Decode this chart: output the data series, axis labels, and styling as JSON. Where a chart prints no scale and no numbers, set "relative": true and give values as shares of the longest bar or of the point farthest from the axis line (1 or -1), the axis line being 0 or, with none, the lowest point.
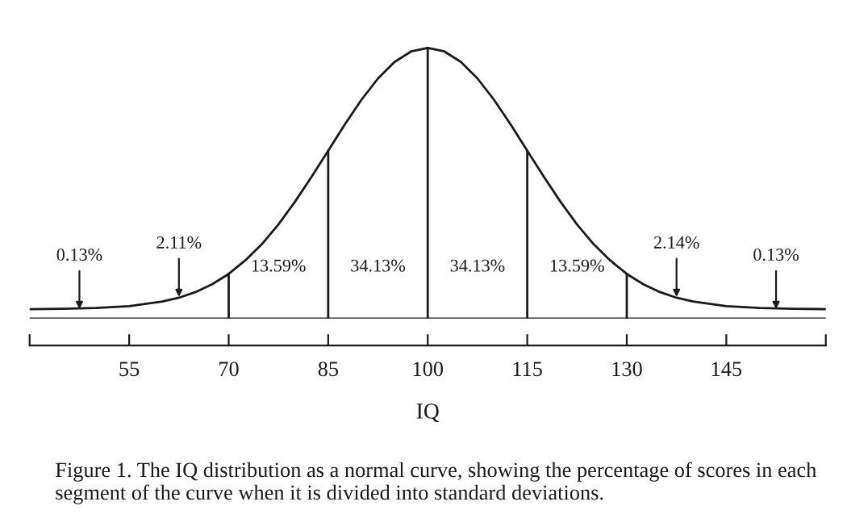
{
  "chart_data": {
    "type": "line",
    "relative": true,
    "xlabel": "IQ",
    "x": [
      40,
      45,
      50,
      55,
      60,
      62.5,
      65,
      67.5,
      70,
      72.5,
      75,
      77.5,
      80,
      82.5,
      85,
      87.5,
      90,
      92.5,
      95,
      97.5,
      100,
      102.5,
      105,
      107.5,
      110,
      112.5,
      115,
      117.5,
      120,
      122.5,
      125,
      127.5,
      130,
      132.5,
      135,
      137.5,
      140,
      145,
      150,
      155,
      160
    ],
    "series": [
      {
        "color": "#1a1a1a",
        "values": [
          0.035,
          0.036,
          0.039,
          0.046,
          0.063,
          0.077,
          0.098,
          0.127,
          0.165,
          0.215,
          0.275,
          0.348,
          0.432,
          0.524,
          0.62,
          0.717,
          0.808,
          0.887,
          0.948,
          0.987,
          1.0,
          0.987,
          0.948,
          0.887,
          0.808,
          0.717,
          0.62,
          0.524,
          0.432,
          0.348,
          0.275,
          0.215,
          0.165,
          0.127,
          0.098,
          0.077,
          0.063,
          0.046,
          0.039,
          0.036,
          0.035
        ]
      }
    ],
    "xlim": [
      40,
      160
    ],
    "xticks": [
      {
        "value": 40,
        "label": null
      },
      55,
      70,
      85,
      100,
      115,
      130,
      145,
      {
        "value": 160,
        "label": null
      }
    ],
    "ref_lines": [
      {
        "axis": "x",
        "value": 70,
        "color": "#1a1a1a"
      },
      {
        "axis": "x",
        "value": 85,
        "color": "#1a1a1a"
      },
      {
        "axis": "x",
        "value": 100,
        "color": "#1a1a1a"
      },
      {
        "axis": "x",
        "value": 115,
        "color": "#1a1a1a"
      },
      {
        "axis": "x",
        "value": 130,
        "color": "#1a1a1a"
      }
    ],
    "annotations": [
      {
        "text": "0.13%",
        "x": 47.5,
        "y": 0.035
      },
      {
        "text": "2.11%",
        "x": 62.5,
        "y": 0.08
      },
      "13.59%",
      "34.13%",
      "34.13%",
      "13.59%",
      {
        "text": "2.14%",
        "x": 137.5,
        "y": 0.08
      },
      {
        "text": "0.13%",
        "x": 152.5,
        "y": 0.035
      },
      "Figure 1. The IQ distribution as a normal curve, showing the percentage of scores in each segment of the curve when it is divided into standard deviations."
    ],
    "grid": false,
    "legend": false,
    "marker": "none",
    "line_style": "solid"
  }
}
